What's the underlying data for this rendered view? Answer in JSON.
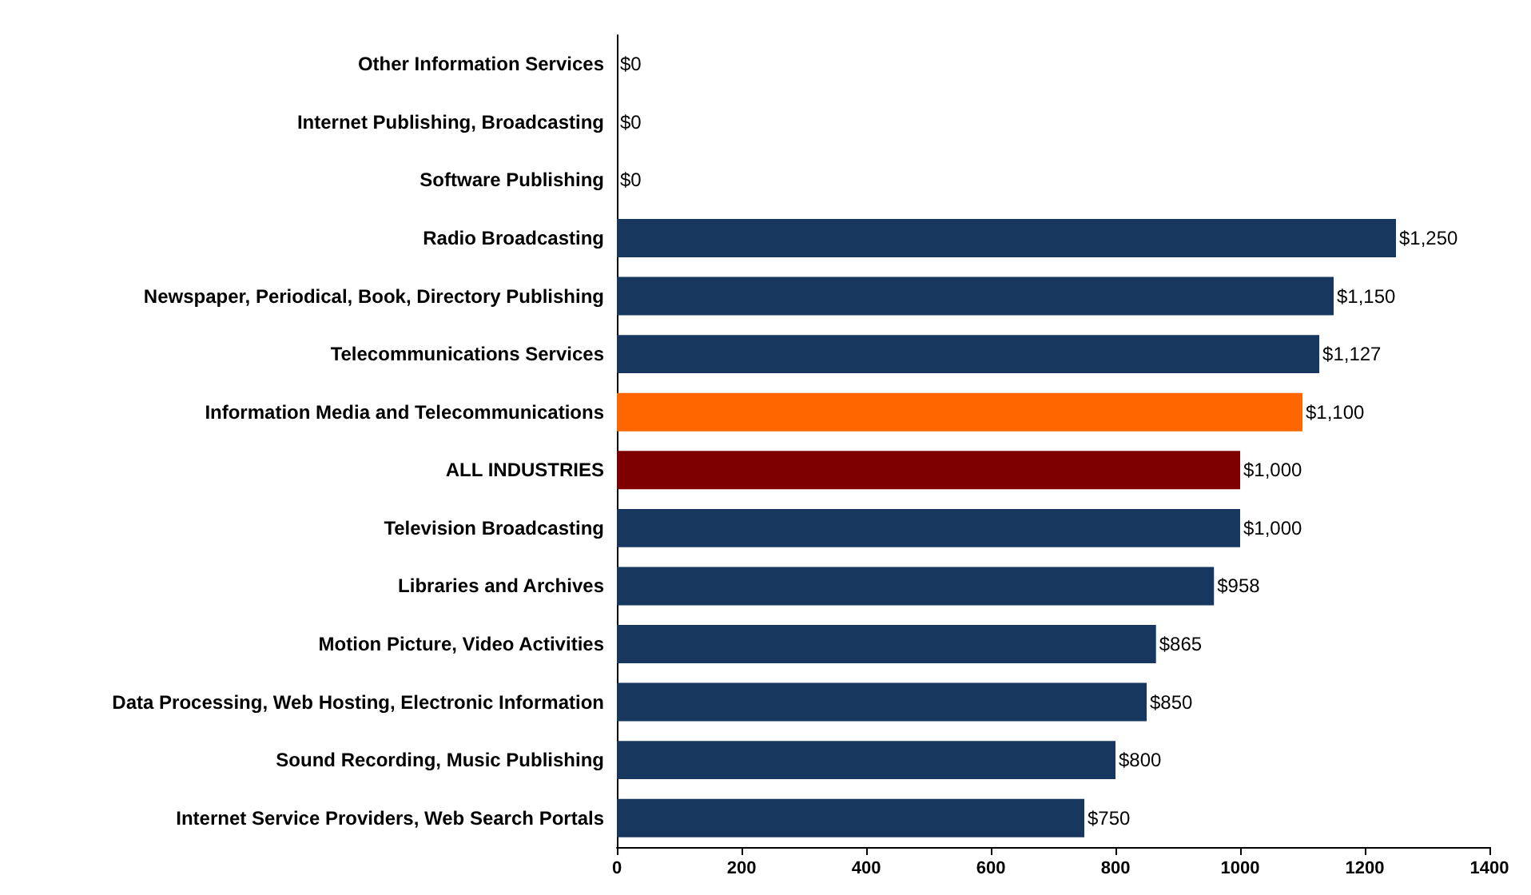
{
  "chart_data": {
    "type": "bar",
    "orientation": "horizontal",
    "categories": [
      "Other Information Services",
      "Internet Publishing, Broadcasting",
      "Software Publishing",
      "Radio Broadcasting",
      "Newspaper, Periodical, Book, Directory Publishing",
      "Telecommunications Services",
      "Information Media and Telecommunications",
      "ALL INDUSTRIES",
      "Television Broadcasting",
      "Libraries and Archives",
      "Motion Picture, Video Activities",
      "Data Processing, Web Hosting, Electronic Information",
      "Sound Recording, Music Publishing",
      "Internet Service Providers, Web Search Portals"
    ],
    "values": [
      0,
      0,
      0,
      1250,
      1150,
      1127,
      1100,
      1000,
      1000,
      958,
      865,
      850,
      800,
      750
    ],
    "value_labels": [
      "$0",
      "$0",
      "$0",
      "$1,250",
      "$1,150",
      "$1,127",
      "$1,100",
      "$1,000",
      "$1,000",
      "$958",
      "$865",
      "$850",
      "$800",
      "$750"
    ],
    "colors": [
      "#17375e",
      "#17375e",
      "#17375e",
      "#17375e",
      "#17375e",
      "#17375e",
      "#ff6600",
      "#7f0000",
      "#17375e",
      "#17375e",
      "#17375e",
      "#17375e",
      "#17375e",
      "#17375e"
    ],
    "xlim": [
      0,
      1400
    ],
    "xticks": [
      0,
      200,
      400,
      600,
      800,
      1000,
      1200,
      1400
    ],
    "grid": false
  }
}
